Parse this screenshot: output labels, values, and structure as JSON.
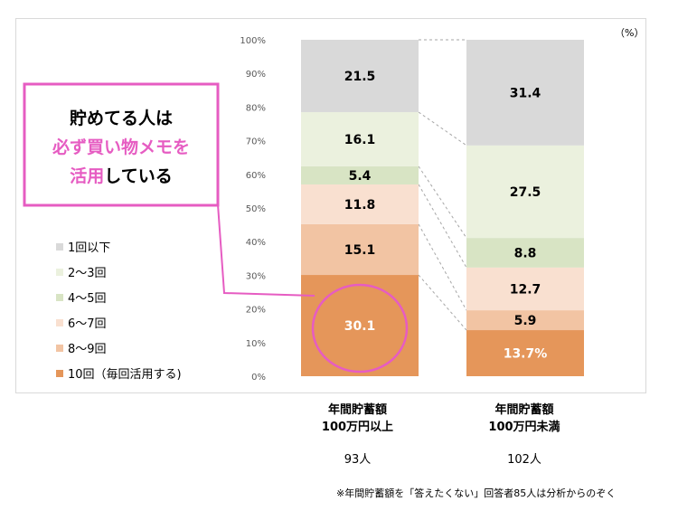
{
  "chart_data": {
    "type": "bar",
    "stacked": true,
    "percent_stacked": true,
    "unit_label": "（%）",
    "yticks": [
      "0%",
      "10%",
      "20%",
      "30%",
      "40%",
      "50%",
      "60%",
      "70%",
      "80%",
      "90%",
      "100%"
    ],
    "ylim": [
      0,
      100
    ],
    "categories": [
      {
        "line1": "年間貯蓄額",
        "line2": "100万円以上",
        "count": "93人"
      },
      {
        "line1": "年間貯蓄額",
        "line2": "100万円未満",
        "count": "102人"
      }
    ],
    "series": [
      {
        "name": "10回（毎回活用する)",
        "color": "#e5965a",
        "values": [
          30.1,
          13.7
        ],
        "labels": [
          "30.1",
          "13.7%"
        ]
      },
      {
        "name": "8～9回",
        "color": "#f2c4a3",
        "values": [
          15.1,
          5.9
        ],
        "labels": [
          "15.1",
          "5.9"
        ]
      },
      {
        "name": "6～7回",
        "color": "#f9e0d0",
        "values": [
          11.8,
          12.7
        ],
        "labels": [
          "11.8",
          "12.7"
        ]
      },
      {
        "name": "4～5回",
        "color": "#d8e4c4",
        "values": [
          5.4,
          8.8
        ],
        "labels": [
          "5.4",
          "8.8"
        ]
      },
      {
        "name": "2～3回",
        "color": "#ebf1de",
        "values": [
          16.1,
          27.5
        ],
        "labels": [
          "16.1",
          "27.5"
        ]
      },
      {
        "name": "1回以下",
        "color": "#d9d9d9",
        "values": [
          21.5,
          31.4
        ],
        "labels": [
          "21.5",
          "31.4"
        ]
      }
    ],
    "callout": {
      "line1": "貯めてる人は",
      "line2": "必ず買い物メモを",
      "line3_pink": "活用",
      "line3_rest": "している",
      "border_color": "#e65cc2",
      "highlight_color": "#e65cc2"
    }
  },
  "footnote": "※年間貯蓄額を「答えたくない」回答者85人は分析からのぞく"
}
